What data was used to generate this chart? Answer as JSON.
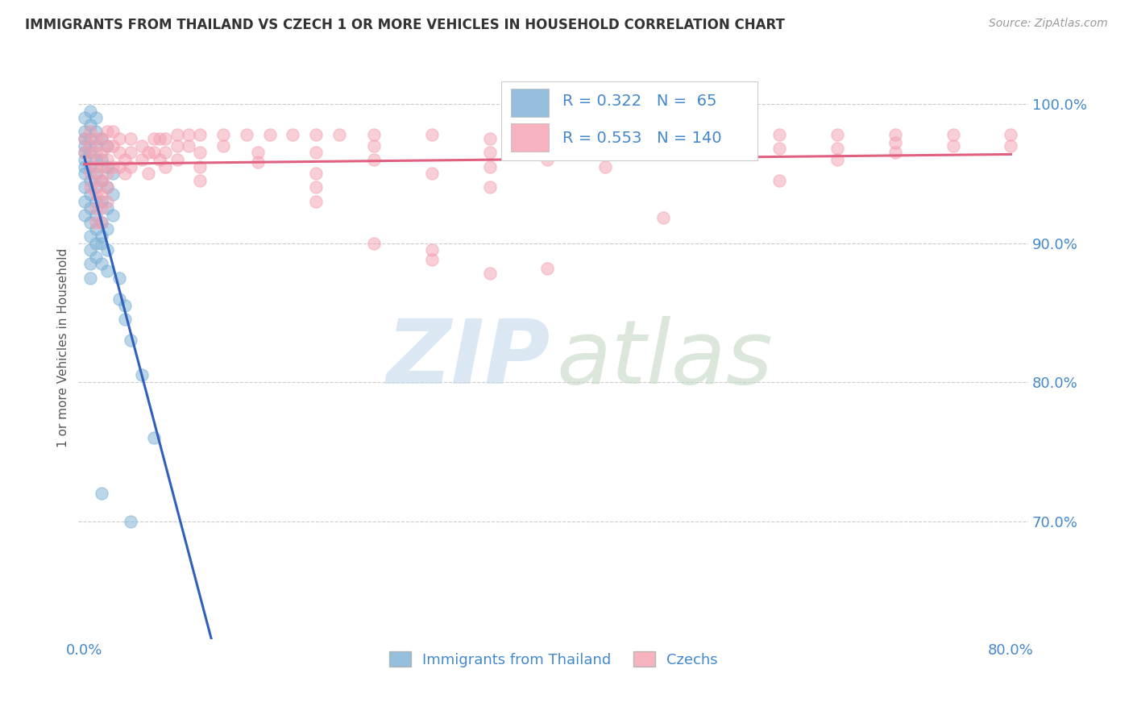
{
  "title": "IMMIGRANTS FROM THAILAND VS CZECH 1 OR MORE VEHICLES IN HOUSEHOLD CORRELATION CHART",
  "source": "Source: ZipAtlas.com",
  "ylabel": "1 or more Vehicles in Household",
  "xlim": [
    -0.005,
    0.815
  ],
  "ylim": [
    0.615,
    1.035
  ],
  "yticks": [
    0.7,
    0.8,
    0.9,
    1.0
  ],
  "ytick_labels": [
    "70.0%",
    "80.0%",
    "90.0%",
    "100.0%"
  ],
  "xticks": [
    0.0,
    0.1,
    0.2,
    0.3,
    0.4,
    0.5,
    0.6,
    0.7,
    0.8
  ],
  "xtick_labels": [
    "0.0%",
    "",
    "",
    "",
    "",
    "",
    "",
    "",
    "80.0%"
  ],
  "legend_R_thailand": "0.322",
  "legend_N_thailand": "65",
  "legend_R_czech": "0.553",
  "legend_N_czech": "140",
  "thailand_color": "#7BAFD4",
  "czech_color": "#F4A0B0",
  "thailand_line_color": "#3060BB",
  "czech_line_color": "#E06080",
  "watermark_zip_color": "#C5D8EE",
  "watermark_atlas_color": "#C5D8C5",
  "background_color": "#FFFFFF",
  "grid_color": "#CCCCCC",
  "title_color": "#333333",
  "axis_tick_color": "#4488CC",
  "ylabel_color": "#555555",
  "source_color": "#999999",
  "legend_text_color": "#4488CC",
  "thailand_points": [
    [
      0.0,
      0.99
    ],
    [
      0.0,
      0.98
    ],
    [
      0.0,
      0.975
    ],
    [
      0.0,
      0.97
    ],
    [
      0.0,
      0.965
    ],
    [
      0.0,
      0.96
    ],
    [
      0.0,
      0.955
    ],
    [
      0.0,
      0.95
    ],
    [
      0.005,
      0.995
    ],
    [
      0.005,
      0.985
    ],
    [
      0.005,
      0.975
    ],
    [
      0.005,
      0.965
    ],
    [
      0.005,
      0.955
    ],
    [
      0.005,
      0.945
    ],
    [
      0.005,
      0.935
    ],
    [
      0.005,
      0.925
    ],
    [
      0.005,
      0.915
    ],
    [
      0.005,
      0.905
    ],
    [
      0.005,
      0.895
    ],
    [
      0.005,
      0.885
    ],
    [
      0.01,
      0.99
    ],
    [
      0.01,
      0.98
    ],
    [
      0.01,
      0.97
    ],
    [
      0.01,
      0.96
    ],
    [
      0.01,
      0.95
    ],
    [
      0.01,
      0.94
    ],
    [
      0.01,
      0.93
    ],
    [
      0.01,
      0.92
    ],
    [
      0.01,
      0.91
    ],
    [
      0.01,
      0.9
    ],
    [
      0.015,
      0.975
    ],
    [
      0.015,
      0.96
    ],
    [
      0.015,
      0.945
    ],
    [
      0.015,
      0.93
    ],
    [
      0.015,
      0.915
    ],
    [
      0.015,
      0.9
    ],
    [
      0.015,
      0.885
    ],
    [
      0.02,
      0.97
    ],
    [
      0.02,
      0.955
    ],
    [
      0.02,
      0.94
    ],
    [
      0.02,
      0.925
    ],
    [
      0.02,
      0.91
    ],
    [
      0.02,
      0.895
    ],
    [
      0.02,
      0.88
    ],
    [
      0.025,
      0.95
    ],
    [
      0.025,
      0.935
    ],
    [
      0.025,
      0.92
    ],
    [
      0.03,
      0.86
    ],
    [
      0.03,
      0.875
    ],
    [
      0.035,
      0.845
    ],
    [
      0.035,
      0.855
    ],
    [
      0.04,
      0.83
    ],
    [
      0.05,
      0.805
    ],
    [
      0.06,
      0.76
    ],
    [
      0.015,
      0.72
    ],
    [
      0.04,
      0.7
    ],
    [
      0.0,
      0.94
    ],
    [
      0.0,
      0.93
    ],
    [
      0.0,
      0.92
    ],
    [
      0.005,
      0.875
    ],
    [
      0.01,
      0.89
    ],
    [
      0.015,
      0.905
    ]
  ],
  "czech_points": [
    [
      0.0,
      0.975
    ],
    [
      0.0,
      0.965
    ],
    [
      0.005,
      0.98
    ],
    [
      0.005,
      0.97
    ],
    [
      0.005,
      0.96
    ],
    [
      0.005,
      0.95
    ],
    [
      0.005,
      0.94
    ],
    [
      0.01,
      0.975
    ],
    [
      0.01,
      0.965
    ],
    [
      0.01,
      0.955
    ],
    [
      0.01,
      0.945
    ],
    [
      0.01,
      0.935
    ],
    [
      0.01,
      0.925
    ],
    [
      0.01,
      0.915
    ],
    [
      0.015,
      0.975
    ],
    [
      0.015,
      0.965
    ],
    [
      0.015,
      0.955
    ],
    [
      0.015,
      0.945
    ],
    [
      0.015,
      0.935
    ],
    [
      0.015,
      0.925
    ],
    [
      0.015,
      0.915
    ],
    [
      0.02,
      0.98
    ],
    [
      0.02,
      0.97
    ],
    [
      0.02,
      0.96
    ],
    [
      0.02,
      0.95
    ],
    [
      0.02,
      0.94
    ],
    [
      0.02,
      0.93
    ],
    [
      0.025,
      0.98
    ],
    [
      0.025,
      0.97
    ],
    [
      0.025,
      0.955
    ],
    [
      0.03,
      0.975
    ],
    [
      0.03,
      0.965
    ],
    [
      0.03,
      0.955
    ],
    [
      0.035,
      0.96
    ],
    [
      0.035,
      0.95
    ],
    [
      0.04,
      0.975
    ],
    [
      0.04,
      0.965
    ],
    [
      0.04,
      0.955
    ],
    [
      0.05,
      0.97
    ],
    [
      0.05,
      0.96
    ],
    [
      0.055,
      0.965
    ],
    [
      0.055,
      0.95
    ],
    [
      0.06,
      0.975
    ],
    [
      0.06,
      0.965
    ],
    [
      0.065,
      0.975
    ],
    [
      0.065,
      0.96
    ],
    [
      0.07,
      0.975
    ],
    [
      0.07,
      0.965
    ],
    [
      0.07,
      0.955
    ],
    [
      0.08,
      0.978
    ],
    [
      0.08,
      0.97
    ],
    [
      0.08,
      0.96
    ],
    [
      0.09,
      0.978
    ],
    [
      0.09,
      0.97
    ],
    [
      0.1,
      0.978
    ],
    [
      0.1,
      0.965
    ],
    [
      0.1,
      0.955
    ],
    [
      0.1,
      0.945
    ],
    [
      0.12,
      0.978
    ],
    [
      0.12,
      0.97
    ],
    [
      0.14,
      0.978
    ],
    [
      0.15,
      0.965
    ],
    [
      0.15,
      0.958
    ],
    [
      0.16,
      0.978
    ],
    [
      0.18,
      0.978
    ],
    [
      0.2,
      0.978
    ],
    [
      0.2,
      0.965
    ],
    [
      0.2,
      0.95
    ],
    [
      0.2,
      0.94
    ],
    [
      0.2,
      0.93
    ],
    [
      0.22,
      0.978
    ],
    [
      0.25,
      0.978
    ],
    [
      0.25,
      0.97
    ],
    [
      0.25,
      0.96
    ],
    [
      0.25,
      0.9
    ],
    [
      0.3,
      0.978
    ],
    [
      0.3,
      0.95
    ],
    [
      0.3,
      0.895
    ],
    [
      0.3,
      0.888
    ],
    [
      0.35,
      0.975
    ],
    [
      0.35,
      0.965
    ],
    [
      0.35,
      0.955
    ],
    [
      0.35,
      0.94
    ],
    [
      0.35,
      0.878
    ],
    [
      0.4,
      0.978
    ],
    [
      0.4,
      0.96
    ],
    [
      0.4,
      0.882
    ],
    [
      0.45,
      0.978
    ],
    [
      0.45,
      0.968
    ],
    [
      0.45,
      0.955
    ],
    [
      0.5,
      0.978
    ],
    [
      0.5,
      0.97
    ],
    [
      0.5,
      0.918
    ],
    [
      0.55,
      0.975
    ],
    [
      0.55,
      0.965
    ],
    [
      0.6,
      0.978
    ],
    [
      0.6,
      0.968
    ],
    [
      0.6,
      0.945
    ],
    [
      0.65,
      0.978
    ],
    [
      0.65,
      0.968
    ],
    [
      0.65,
      0.96
    ],
    [
      0.7,
      0.978
    ],
    [
      0.7,
      0.972
    ],
    [
      0.7,
      0.965
    ],
    [
      0.75,
      0.978
    ],
    [
      0.75,
      0.97
    ],
    [
      0.8,
      0.978
    ],
    [
      0.8,
      0.97
    ]
  ]
}
